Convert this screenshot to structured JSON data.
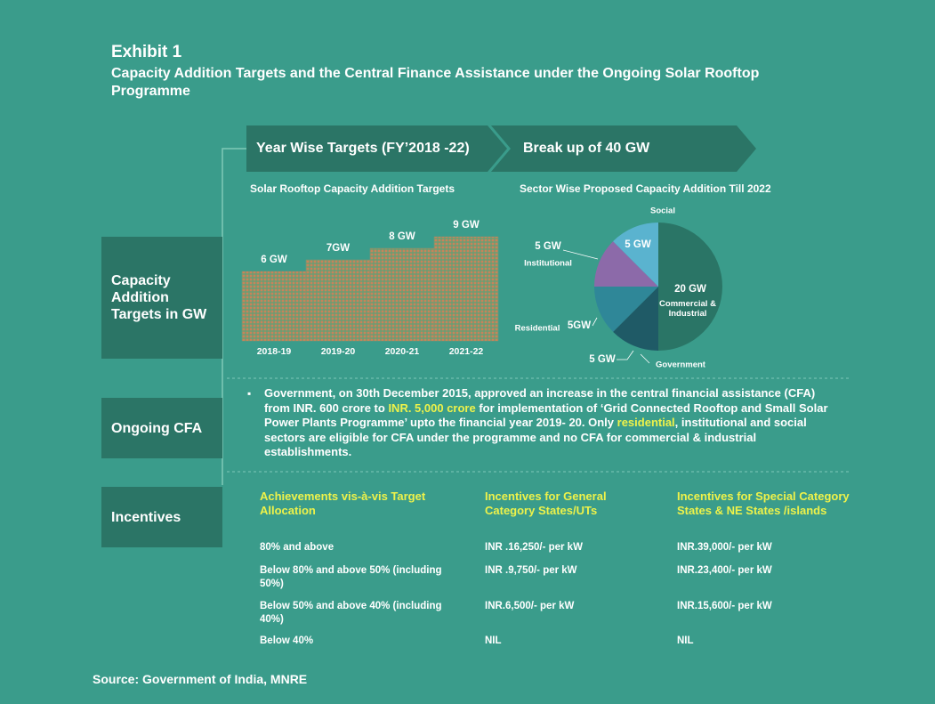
{
  "header": {
    "exhibit": "Exhibit 1",
    "title": "Capacity Addition Targets and the Central Finance Assistance under the Ongoing  Solar Rooftop Programme"
  },
  "banners": [
    "Year Wise Targets (FY’2018 -22)",
    "Break up of 40 GW"
  ],
  "sections": [
    "Capacity Addition Targets in GW",
    "Ongoing CFA",
    "Incentives"
  ],
  "chart_data": [
    {
      "type": "bar",
      "title": "Solar Rooftop Capacity Addition Targets",
      "categories": [
        "2018-19",
        "2019-20",
        "2020-21",
        "2021-22"
      ],
      "values": [
        6,
        7,
        8,
        9
      ],
      "value_labels": [
        "6 GW",
        "7GW",
        "8 GW",
        "9 GW"
      ],
      "color": "#c8835a"
    },
    {
      "type": "pie",
      "title": "Sector Wise Proposed Capacity Addition Till 2022",
      "categories": [
        "Commercial & Industrial",
        "Government",
        "Residential",
        "Institutional",
        "Social"
      ],
      "values": [
        20,
        5,
        5,
        5,
        5
      ],
      "value_labels": [
        "20 GW",
        "5 GW",
        "5GW",
        "5 GW",
        "5 GW"
      ],
      "colors": [
        "#2a7566",
        "#1f5a66",
        "#2f8798",
        "#8c6aa9",
        "#5ab3cf"
      ]
    }
  ],
  "cfa": [
    {
      "text": "Government, on 30th December 2015, approved an increase in the central financial assistance (CFA) from INR. 600 crore to ",
      "color": "#ffffff"
    },
    {
      "text": "INR. 5,000 crore",
      "color": "#eef24a"
    },
    {
      "text": " for implementation of ‘Grid Connected Rooftop and Small Solar Power Plants Programme’ upto the financial year 2019- 20. Only ",
      "color": "#ffffff"
    },
    {
      "text": "residential",
      "color": "#eef24a"
    },
    {
      "text": ", institutional and social sectors are eligible for CFA under the programme and no CFA for commercial & industrial establishments.",
      "color": "#ffffff"
    }
  ],
  "table": {
    "headers": [
      "Achievements vis-à-vis  Target Allocation",
      "Incentives for General Category States/UTs",
      "Incentives for Special Category States & NE States /islands"
    ],
    "rows": [
      [
        "80% and above",
        "INR .16,250/- per kW",
        "INR.39,000/- per kW"
      ],
      [
        "Below 80% and above 50% (including 50%)",
        "INR .9,750/- per kW",
        "INR.23,400/- per kW"
      ],
      [
        "Below 50% and above 40% (including 40%)",
        "INR.6,500/- per kW",
        "INR.15,600/- per kW"
      ],
      [
        "Below 40%",
        "NIL",
        "NIL"
      ]
    ]
  },
  "source": "Source: Government of India, MNRE"
}
